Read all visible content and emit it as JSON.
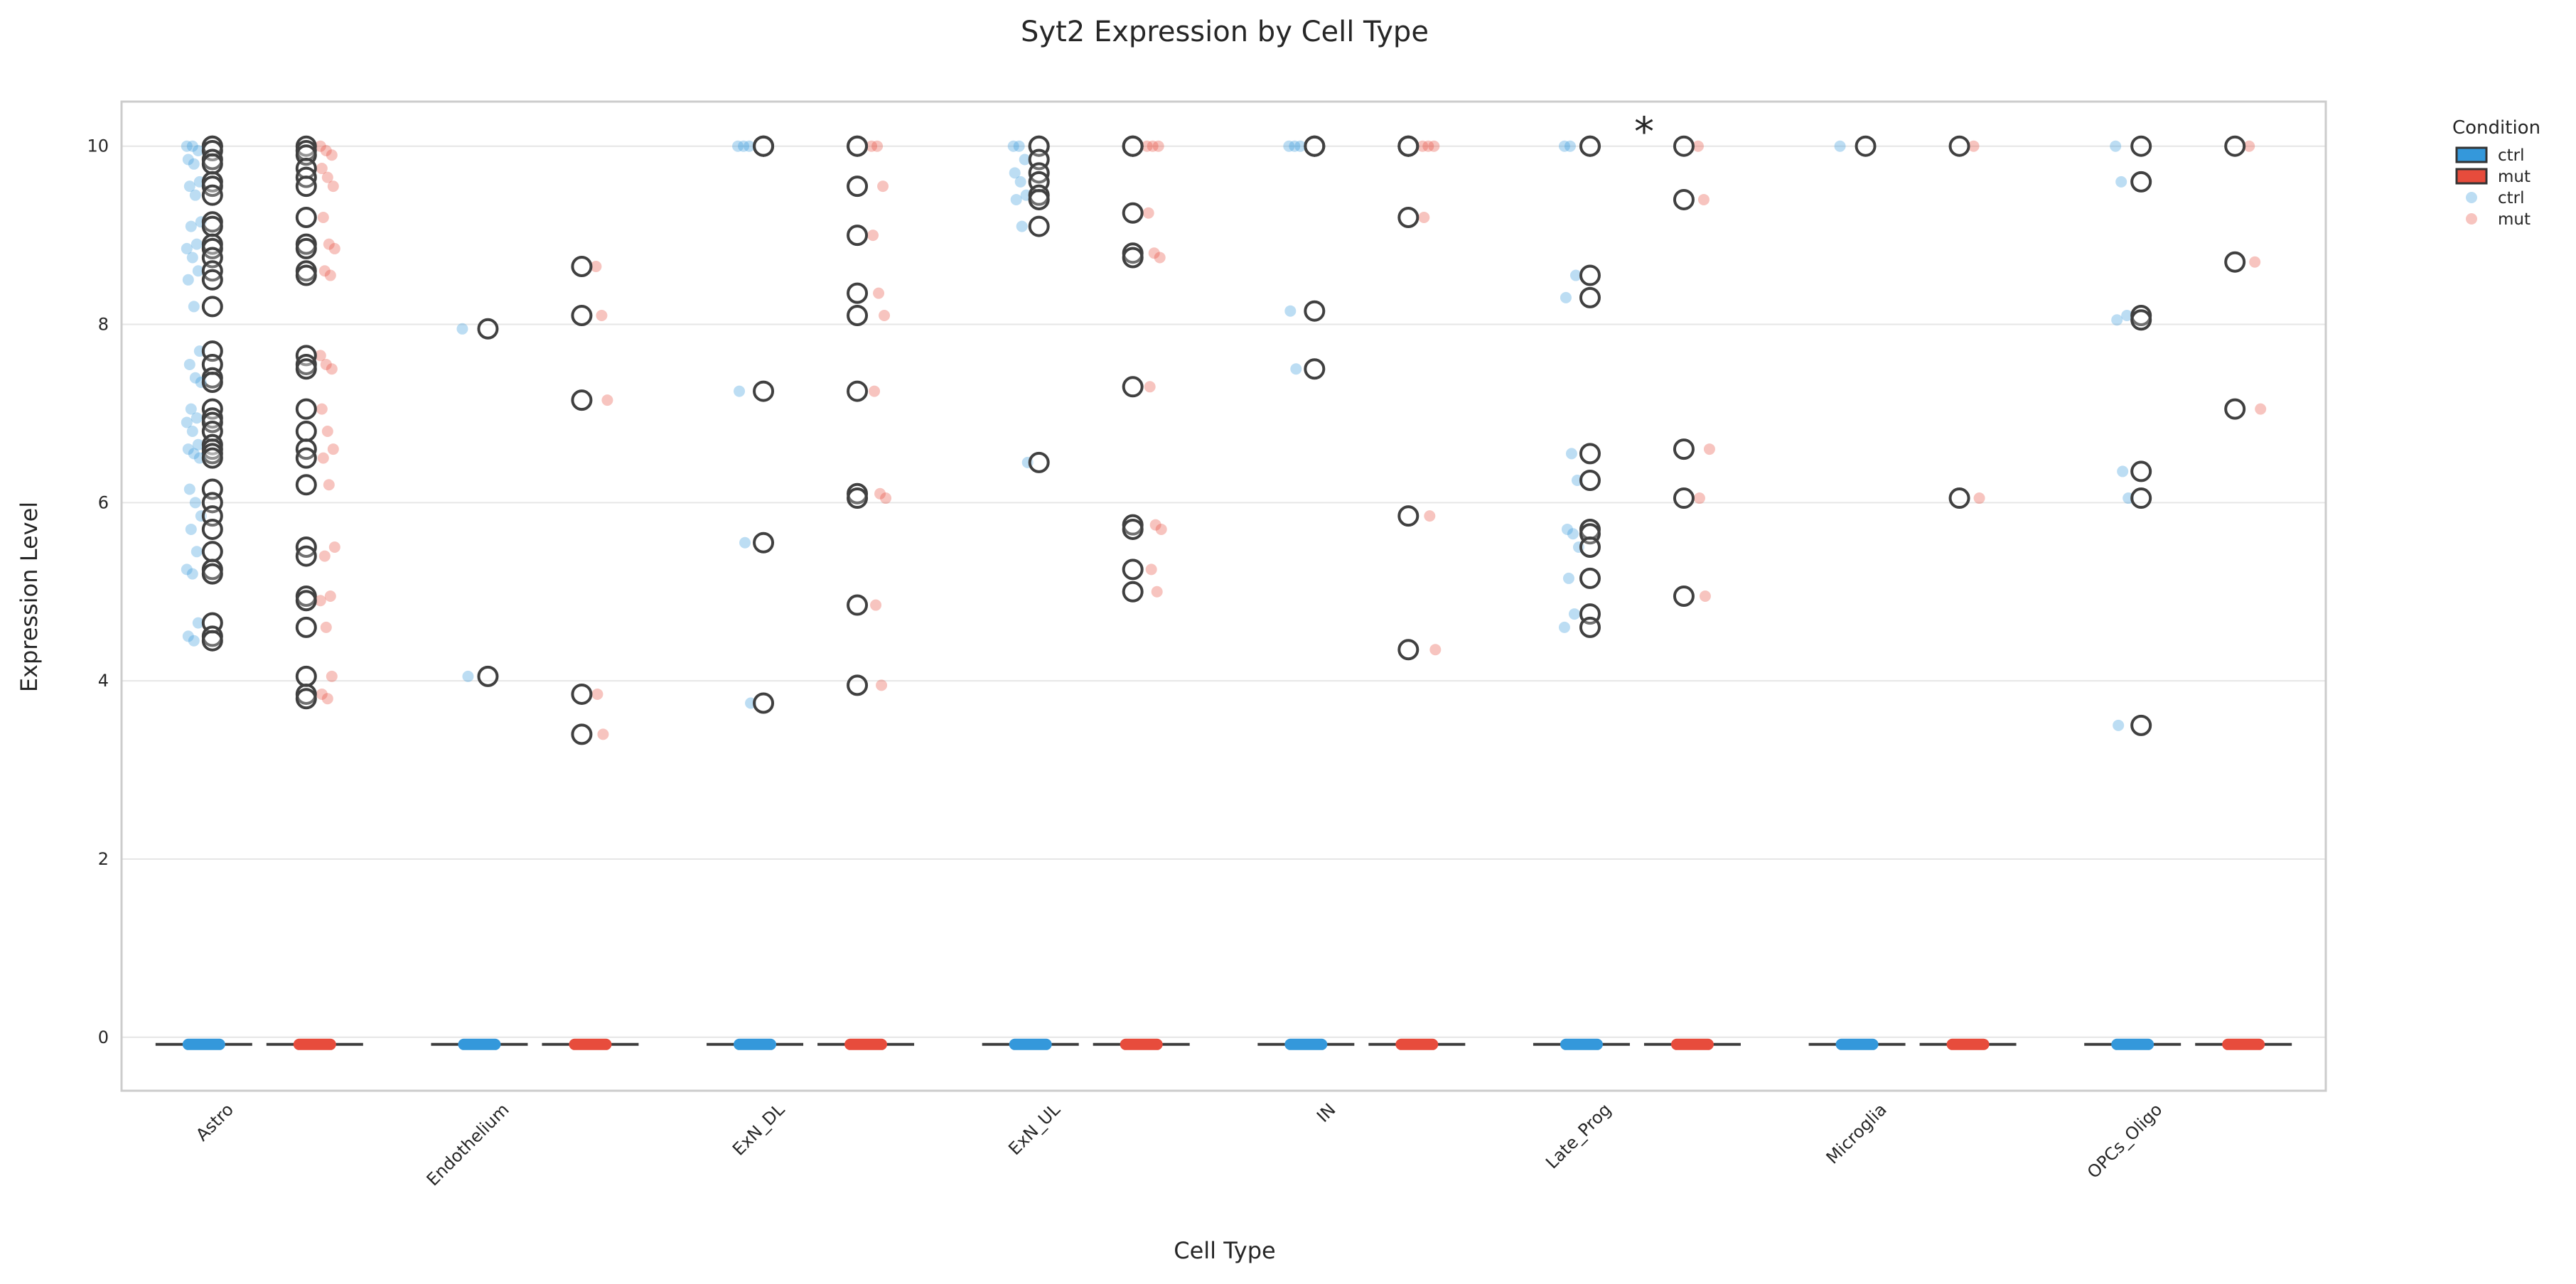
{
  "chart_data": {
    "type": "box",
    "title": "Syt2 Expression by Cell Type",
    "xlabel": "Cell Type",
    "ylabel": "Expression Level",
    "ylim": [
      -0.6,
      10.5
    ],
    "yticks": [
      0,
      2,
      4,
      6,
      8,
      10
    ],
    "grid": "horizontal",
    "categories": [
      "Astro",
      "Endothelium",
      "ExN_DL",
      "ExN_UL",
      "IN",
      "Late_Prog",
      "Microglia",
      "OPCs_Oligo"
    ],
    "colors": {
      "ctrl": "#3498db",
      "mut": "#e74c3c",
      "box_edge": "#3d3d3d",
      "grid": "#e6e6e6",
      "frame": "#cccccc"
    },
    "legend": {
      "title": "Condition",
      "placement": "outside-top-right",
      "entries": [
        {
          "label": "ctrl",
          "kind": "box",
          "series": "ctrl"
        },
        {
          "label": "mut",
          "kind": "box",
          "series": "mut"
        },
        {
          "label": "ctrl",
          "kind": "point",
          "series": "ctrl"
        },
        {
          "label": "mut",
          "kind": "point",
          "series": "mut"
        }
      ]
    },
    "annotations": [
      {
        "text": "*",
        "category": "Late_Prog",
        "y": 10.25
      }
    ],
    "box_summary": {
      "median": -0.08,
      "q1": -0.08,
      "q3": -0.08,
      "whisker_low": -0.08,
      "whisker_high": -0.08
    },
    "series": [
      {
        "name": "ctrl",
        "points": {
          "Astro": [
            10,
            10,
            9.95,
            9.85,
            9.8,
            9.6,
            9.55,
            9.45,
            9.15,
            9.1,
            8.9,
            8.85,
            8.75,
            8.6,
            8.5,
            8.2,
            7.7,
            7.55,
            7.4,
            7.35,
            7.05,
            6.95,
            6.9,
            6.8,
            6.65,
            6.6,
            6.55,
            6.5,
            6.15,
            6.0,
            5.85,
            5.7,
            5.45,
            5.25,
            5.2,
            4.65,
            4.5,
            4.45
          ],
          "Endothelium": [
            7.95,
            4.05
          ],
          "ExN_DL": [
            10,
            10,
            10,
            7.25,
            5.55,
            3.75
          ],
          "ExN_UL": [
            10,
            10,
            9.85,
            9.7,
            9.6,
            9.45,
            9.4,
            9.1,
            6.45
          ],
          "IN": [
            10,
            10,
            10,
            8.15,
            7.5
          ],
          "Late_Prog": [
            10,
            10,
            8.55,
            8.3,
            6.55,
            6.25,
            5.7,
            5.65,
            5.5,
            5.15,
            4.75,
            4.6
          ],
          "Microglia": [
            10
          ],
          "OPCs_Oligo": [
            10,
            9.6,
            8.1,
            8.05,
            6.35,
            6.05,
            3.5
          ]
        }
      },
      {
        "name": "mut",
        "points": {
          "Astro": [
            10,
            9.95,
            9.9,
            9.75,
            9.65,
            9.55,
            9.2,
            8.9,
            8.85,
            8.6,
            8.55,
            7.65,
            7.55,
            7.5,
            7.05,
            6.8,
            6.6,
            6.5,
            6.2,
            5.5,
            5.4,
            4.95,
            4.9,
            4.6,
            4.05,
            3.85,
            3.8
          ],
          "Endothelium": [
            8.65,
            8.1,
            7.15,
            3.85,
            3.4
          ],
          "ExN_DL": [
            10,
            10,
            9.55,
            9.0,
            8.35,
            8.1,
            7.25,
            6.1,
            6.05,
            4.85,
            3.95
          ],
          "ExN_UL": [
            10,
            10,
            10,
            9.25,
            8.8,
            8.75,
            7.3,
            5.75,
            5.7,
            5.25,
            5.0
          ],
          "IN": [
            10,
            10,
            10,
            9.2,
            5.85,
            4.35
          ],
          "Late_Prog": [
            10,
            9.4,
            6.6,
            6.05,
            4.95
          ],
          "Microglia": [
            10,
            6.05
          ],
          "OPCs_Oligo": [
            10,
            8.7,
            7.05
          ]
        }
      }
    ]
  }
}
